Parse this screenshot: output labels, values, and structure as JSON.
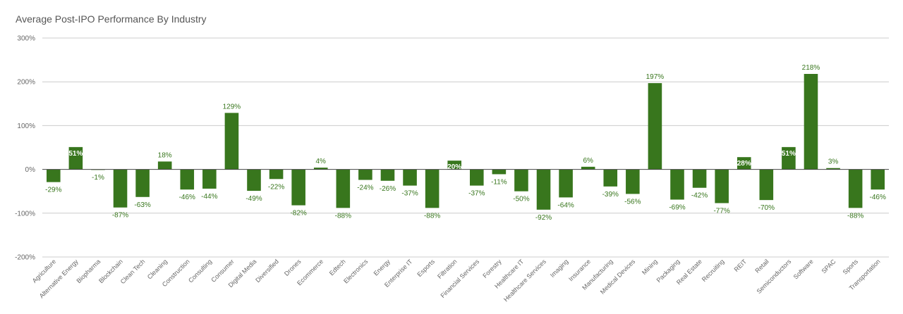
{
  "colors": {
    "bar": "#38761d",
    "grid": "#cccccc",
    "zero": "#444444",
    "label_outside": "#38761d",
    "label_inside": "#ffffff",
    "text": "#666666"
  },
  "chart_data": {
    "type": "bar",
    "title": "Average Post-IPO Performance By Industry",
    "xlabel": "",
    "ylabel": "",
    "ylim": [
      -200,
      300
    ],
    "yticks": [
      300,
      200,
      100,
      0,
      -100,
      -200
    ],
    "ytick_labels": [
      "300%",
      "200%",
      "100%",
      "0%",
      "-100%",
      "-200%"
    ],
    "grid": true,
    "legend": "none",
    "categories": [
      "Agriculture",
      "Alternative Energy",
      "Biopharma",
      "Blockchain",
      "Clean Tech",
      "Cleaning",
      "Construction",
      "Consulting",
      "Consumer",
      "Digital Media",
      "Diversified",
      "Drones",
      "Ecommerce",
      "Edtech",
      "Electronics",
      "Energy",
      "Enterprise IT",
      "Esports",
      "Filtration",
      "Financial Services",
      "Forestry",
      "Healthcare IT",
      "Healthcare Services",
      "Imaging",
      "Insurance",
      "Manufacturing",
      "Medical Devices",
      "Mining",
      "Packaging",
      "Real Estate",
      "Recruiting",
      "REIT",
      "Retail",
      "Semiconductors",
      "Software",
      "SPAC",
      "Sports",
      "Transportation"
    ],
    "values": [
      -29,
      51,
      -1,
      -87,
      -63,
      18,
      -46,
      -44,
      129,
      -49,
      -22,
      -82,
      4,
      -88,
      -24,
      -26,
      -37,
      -88,
      20,
      -37,
      -11,
      -50,
      -92,
      -64,
      6,
      -39,
      -56,
      197,
      -69,
      -42,
      -77,
      28,
      -70,
      51,
      218,
      3,
      -88,
      -46
    ],
    "data_labels": [
      "-29%",
      "51%",
      "-1%",
      "-87%",
      "-63%",
      "18%",
      "-46%",
      "-44%",
      "129%",
      "-49%",
      "-22%",
      "-82%",
      "4%",
      "-88%",
      "-24%",
      "-26%",
      "-37%",
      "-88%",
      "20%",
      "-37%",
      "-11%",
      "-50%",
      "-92%",
      "-64%",
      "6%",
      "-39%",
      "-56%",
      "197%",
      "-69%",
      "-42%",
      "-77%",
      "28%",
      "-70%",
      "51%",
      "218%",
      "3%",
      "-88%",
      "-46%"
    ],
    "label_inside": [
      false,
      true,
      false,
      false,
      false,
      false,
      false,
      false,
      false,
      false,
      false,
      false,
      false,
      false,
      false,
      false,
      false,
      false,
      true,
      false,
      false,
      false,
      false,
      false,
      false,
      false,
      false,
      false,
      false,
      false,
      false,
      true,
      false,
      true,
      false,
      false,
      false,
      false
    ]
  }
}
